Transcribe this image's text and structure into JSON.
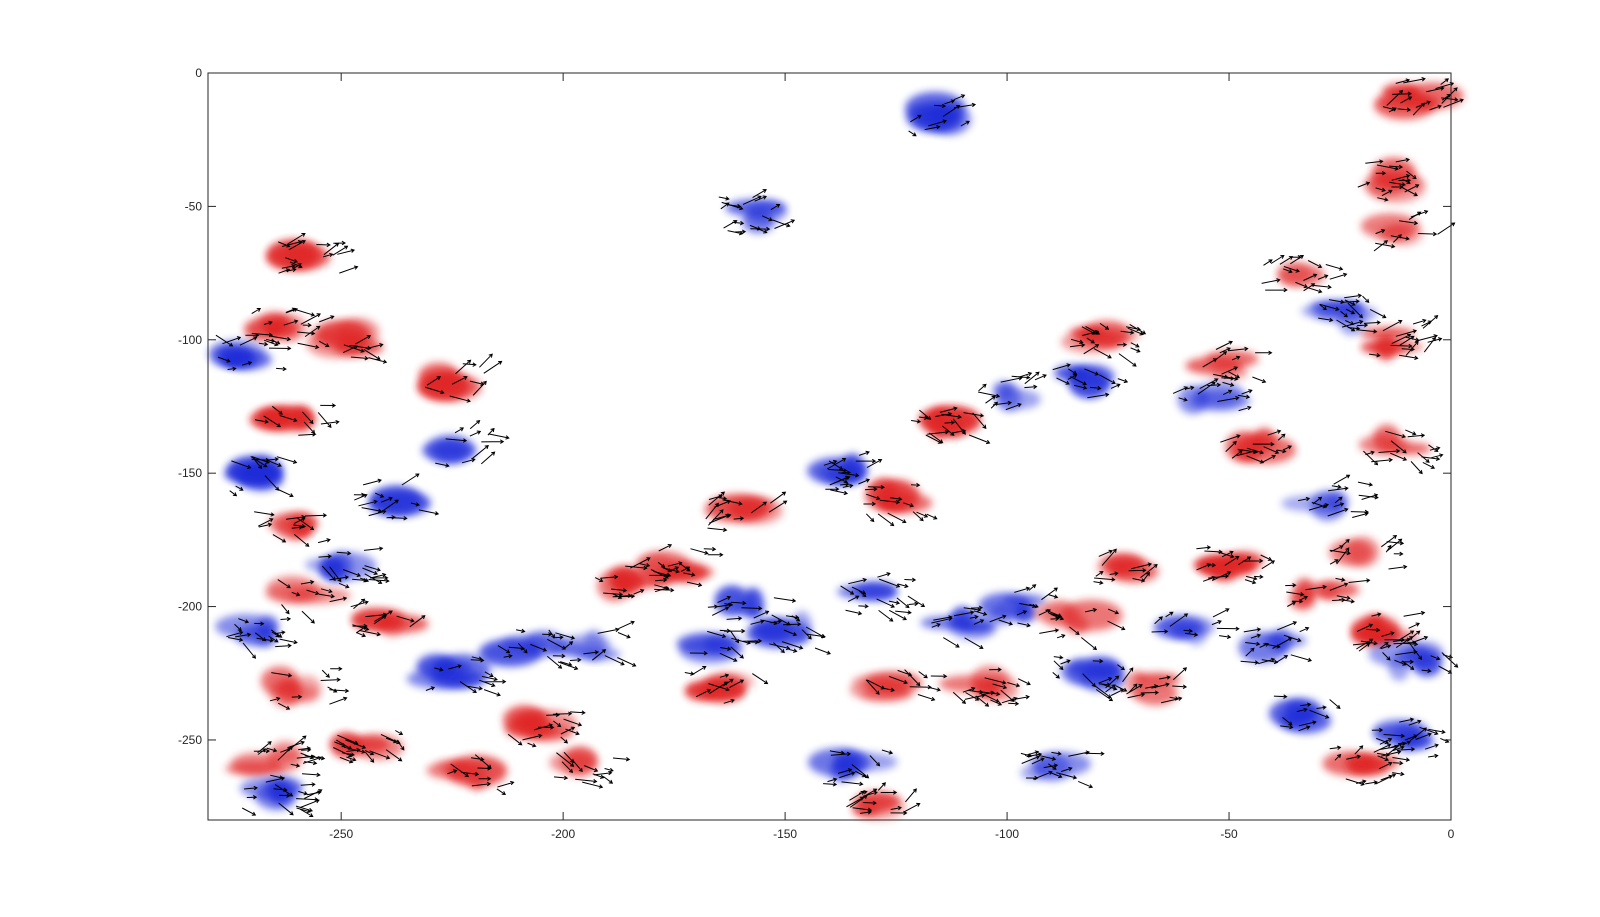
{
  "chart_data": {
    "type": "quiver",
    "title": "",
    "xlabel": "",
    "ylabel": "",
    "xlim": [
      -280,
      0
    ],
    "ylim": [
      -280,
      0
    ],
    "x_ticks": [
      -250,
      -200,
      -150,
      -100,
      -50,
      0
    ],
    "y_ticks": [
      0,
      -50,
      -100,
      -150,
      -200,
      -250
    ],
    "x_tick_labels": [
      "-250",
      "-200",
      "-150",
      "-100",
      "-50",
      "0"
    ],
    "y_tick_labels": [
      "0",
      "-50",
      "-100",
      "-150",
      "-200",
      "-250"
    ],
    "grid": false,
    "legend": "none",
    "colors": {
      "positive": "#e02020",
      "negative": "#1e2ad8",
      "arrows": "#000000"
    },
    "series": [
      {
        "kind": "scalar-field",
        "patches": [
          {
            "x": -258,
            "y": -70,
            "v": 1
          },
          {
            "x": -265,
            "y": -95,
            "v": 1
          },
          {
            "x": -272,
            "y": -105,
            "v": -1
          },
          {
            "x": -262,
            "y": -130,
            "v": 1
          },
          {
            "x": -268,
            "y": -150,
            "v": -1
          },
          {
            "x": -262,
            "y": -170,
            "v": 1
          },
          {
            "x": -250,
            "y": -185,
            "v": -1
          },
          {
            "x": -258,
            "y": -195,
            "v": 1
          },
          {
            "x": -240,
            "y": -205,
            "v": 1
          },
          {
            "x": -270,
            "y": -210,
            "v": -1
          },
          {
            "x": -240,
            "y": -160,
            "v": -1
          },
          {
            "x": -248,
            "y": -100,
            "v": 1
          },
          {
            "x": -222,
            "y": -140,
            "v": -1
          },
          {
            "x": -225,
            "y": -115,
            "v": 1
          },
          {
            "x": -208,
            "y": -215,
            "v": -1
          },
          {
            "x": -225,
            "y": -225,
            "v": -1
          },
          {
            "x": -260,
            "y": -230,
            "v": 1
          },
          {
            "x": -245,
            "y": -250,
            "v": 1
          },
          {
            "x": -266,
            "y": -258,
            "v": 1
          },
          {
            "x": -265,
            "y": -270,
            "v": -1
          },
          {
            "x": -222,
            "y": -262,
            "v": 1
          },
          {
            "x": -205,
            "y": -245,
            "v": 1
          },
          {
            "x": -195,
            "y": -215,
            "v": -1
          },
          {
            "x": -185,
            "y": -190,
            "v": 1
          },
          {
            "x": -175,
            "y": -185,
            "v": 1
          },
          {
            "x": -160,
            "y": -200,
            "v": -1
          },
          {
            "x": -165,
            "y": -215,
            "v": -1
          },
          {
            "x": -150,
            "y": -210,
            "v": -1
          },
          {
            "x": -160,
            "y": -165,
            "v": 1
          },
          {
            "x": -158,
            "y": -53,
            "v": -1
          },
          {
            "x": -135,
            "y": -150,
            "v": -1
          },
          {
            "x": -125,
            "y": -160,
            "v": 1
          },
          {
            "x": -115,
            "y": -130,
            "v": 1
          },
          {
            "x": -100,
            "y": -120,
            "v": -1
          },
          {
            "x": -130,
            "y": -195,
            "v": -1
          },
          {
            "x": -110,
            "y": -205,
            "v": -1
          },
          {
            "x": -98,
            "y": -200,
            "v": -1
          },
          {
            "x": -125,
            "y": -230,
            "v": 1
          },
          {
            "x": -105,
            "y": -230,
            "v": 1
          },
          {
            "x": -135,
            "y": -260,
            "v": -1
          },
          {
            "x": -130,
            "y": -275,
            "v": 1
          },
          {
            "x": -90,
            "y": -260,
            "v": -1
          },
          {
            "x": -85,
            "y": -205,
            "v": 1
          },
          {
            "x": -82,
            "y": -225,
            "v": -1
          },
          {
            "x": -70,
            "y": -230,
            "v": 1
          },
          {
            "x": -75,
            "y": -185,
            "v": 1
          },
          {
            "x": -60,
            "y": -210,
            "v": -1
          },
          {
            "x": -82,
            "y": -115,
            "v": -1
          },
          {
            "x": -78,
            "y": -100,
            "v": 1
          },
          {
            "x": -55,
            "y": -120,
            "v": -1
          },
          {
            "x": -50,
            "y": -110,
            "v": 1
          },
          {
            "x": -50,
            "y": -185,
            "v": 1
          },
          {
            "x": -40,
            "y": -215,
            "v": -1
          },
          {
            "x": -45,
            "y": -140,
            "v": 1
          },
          {
            "x": -28,
            "y": -160,
            "v": -1
          },
          {
            "x": -30,
            "y": -195,
            "v": 1
          },
          {
            "x": -20,
            "y": -180,
            "v": 1
          },
          {
            "x": -15,
            "y": -210,
            "v": 1
          },
          {
            "x": -8,
            "y": -220,
            "v": -1
          },
          {
            "x": -12,
            "y": -100,
            "v": 1
          },
          {
            "x": -10,
            "y": -60,
            "v": 1
          },
          {
            "x": -15,
            "y": -40,
            "v": 1
          },
          {
            "x": -8,
            "y": -10,
            "v": 1
          },
          {
            "x": -35,
            "y": -75,
            "v": 1
          },
          {
            "x": -25,
            "y": -90,
            "v": -1
          },
          {
            "x": -12,
            "y": -140,
            "v": 1
          },
          {
            "x": -35,
            "y": -240,
            "v": -1
          },
          {
            "x": -20,
            "y": -260,
            "v": 1
          },
          {
            "x": -10,
            "y": -250,
            "v": -1
          },
          {
            "x": -115,
            "y": -15,
            "v": -1
          },
          {
            "x": -165,
            "y": -230,
            "v": 1
          },
          {
            "x": -195,
            "y": -260,
            "v": 1
          }
        ]
      }
    ]
  }
}
